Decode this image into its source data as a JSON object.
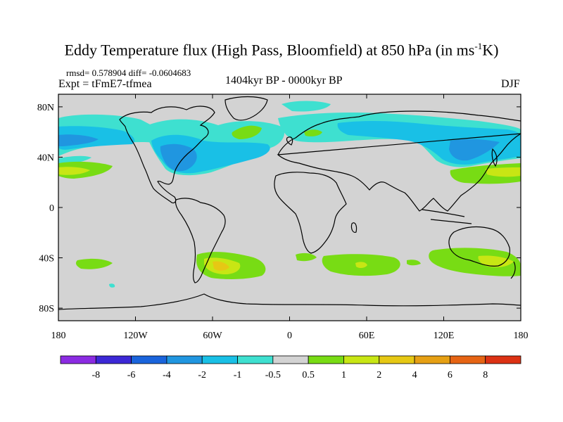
{
  "title_main": "Eddy Temperature flux (High Pass, Bloomfield) at 850 hPa (in ms",
  "title_sup": "-1",
  "title_end": "K)",
  "stats": "rmsd= 0.578904 diff= -0.0604683",
  "experiment": "Expt = tFmE7-tfmea",
  "period": "1404kyr BP - 0000kyr BP",
  "season": "DJF",
  "map": {
    "background_color": "#d3d3d3",
    "lat_ticks": [
      {
        "label": "80N",
        "lat": 80
      },
      {
        "label": "40N",
        "lat": 40
      },
      {
        "label": "0",
        "lat": 0
      },
      {
        "label": "40S",
        "lat": -40
      },
      {
        "label": "80S",
        "lat": -80
      }
    ],
    "lon_ticks": [
      {
        "label": "180",
        "lon": -180
      },
      {
        "label": "120W",
        "lon": -120
      },
      {
        "label": "60W",
        "lon": -60
      },
      {
        "label": "0",
        "lon": 0
      },
      {
        "label": "60E",
        "lon": 60
      },
      {
        "label": "120E",
        "lon": 120
      },
      {
        "label": "180",
        "lon": 180
      }
    ]
  },
  "colorbar": {
    "colors": [
      "#8b2be2",
      "#3c28d6",
      "#1a64dc",
      "#2096e0",
      "#19c0e6",
      "#3ee0d0",
      "#d3d3d3",
      "#78dc14",
      "#c8e614",
      "#e6c814",
      "#e6a014",
      "#e66414",
      "#dc3214"
    ],
    "labels": [
      "-8",
      "-6",
      "-4",
      "-2",
      "-1",
      "-0.5",
      "0.5",
      "1",
      "2",
      "4",
      "6",
      "8"
    ]
  }
}
